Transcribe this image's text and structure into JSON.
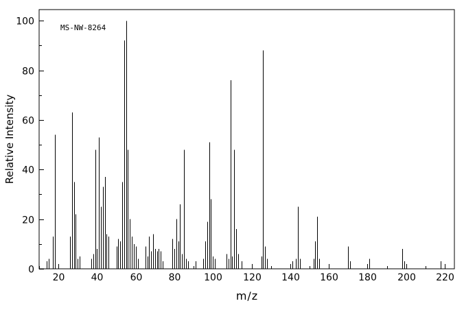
{
  "chart": {
    "label": "MS-NW-8264",
    "xlabel": "m/z",
    "ylabel": "Relative Intensity"
  },
  "colors": {
    "line": "#000000",
    "background": "#ffffff"
  },
  "chart_data": {
    "type": "bar",
    "title": "MS-NW-8264",
    "xlabel": "m/z",
    "ylabel": "Relative Intensity",
    "xlim": [
      10,
      225
    ],
    "ylim": [
      0,
      104.5
    ],
    "x_major_ticks": [
      20,
      40,
      60,
      80,
      100,
      120,
      140,
      160,
      180,
      200,
      220
    ],
    "x_minor_ticks": [
      10,
      30,
      50,
      70,
      90,
      110,
      130,
      150,
      170,
      190,
      210
    ],
    "y_major_ticks": [
      0,
      20,
      40,
      60,
      80,
      100
    ],
    "y_minor_ticks": [
      10,
      30,
      50,
      70,
      90
    ],
    "grid": false,
    "legend": false,
    "peaks": [
      [
        14,
        3
      ],
      [
        15,
        4
      ],
      [
        17,
        13
      ],
      [
        18,
        54
      ],
      [
        26,
        13
      ],
      [
        27,
        63
      ],
      [
        28,
        35
      ],
      [
        29,
        22
      ],
      [
        30,
        4
      ],
      [
        31,
        5
      ],
      [
        37,
        4
      ],
      [
        38,
        6
      ],
      [
        39,
        48
      ],
      [
        40,
        8
      ],
      [
        41,
        53
      ],
      [
        42,
        25
      ],
      [
        43,
        33
      ],
      [
        44,
        37
      ],
      [
        45,
        14
      ],
      [
        46,
        13
      ],
      [
        50,
        9
      ],
      [
        51,
        12
      ],
      [
        52,
        11
      ],
      [
        53,
        35
      ],
      [
        54,
        92
      ],
      [
        55,
        100
      ],
      [
        56,
        48
      ],
      [
        57,
        20
      ],
      [
        58,
        13
      ],
      [
        59,
        10
      ],
      [
        60,
        9
      ],
      [
        61,
        4
      ],
      [
        65,
        9
      ],
      [
        66,
        5
      ],
      [
        67,
        13
      ],
      [
        68,
        7
      ],
      [
        69,
        14
      ],
      [
        70,
        8
      ],
      [
        71,
        7
      ],
      [
        72,
        8
      ],
      [
        73,
        7
      ],
      [
        74,
        3
      ],
      [
        79,
        12
      ],
      [
        80,
        8
      ],
      [
        81,
        20
      ],
      [
        82,
        11
      ],
      [
        83,
        26
      ],
      [
        84,
        6
      ],
      [
        85,
        48
      ],
      [
        86,
        4
      ],
      [
        87,
        3
      ],
      [
        91,
        3
      ],
      [
        95,
        4
      ],
      [
        96,
        11
      ],
      [
        97,
        19
      ],
      [
        98,
        51
      ],
      [
        99,
        28
      ],
      [
        100,
        5
      ],
      [
        101,
        4
      ],
      [
        107,
        6
      ],
      [
        108,
        4
      ],
      [
        109,
        76
      ],
      [
        110,
        5
      ],
      [
        111,
        48
      ],
      [
        112,
        16
      ],
      [
        113,
        6
      ],
      [
        115,
        3
      ],
      [
        125,
        5
      ],
      [
        126,
        88
      ],
      [
        127,
        9
      ],
      [
        128,
        4
      ],
      [
        141,
        3
      ],
      [
        143,
        4
      ],
      [
        144,
        25
      ],
      [
        145,
        4
      ],
      [
        152,
        4
      ],
      [
        153,
        11
      ],
      [
        154,
        21
      ],
      [
        155,
        4
      ],
      [
        170,
        9
      ],
      [
        171,
        3
      ],
      [
        181,
        4
      ],
      [
        198,
        8
      ],
      [
        199,
        3
      ],
      [
        218,
        3
      ]
    ]
  }
}
